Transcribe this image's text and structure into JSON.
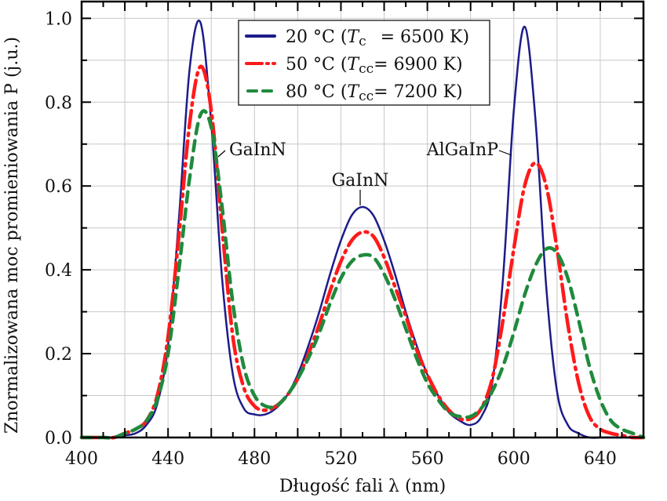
{
  "chart_data": {
    "type": "line",
    "title": "",
    "xlabel": "Długość fali λ (nm)",
    "ylabel": "Znormalizowana moc promieniowania P (j.u.)",
    "xlim": [
      400,
      660
    ],
    "ylim": [
      0,
      1.04
    ],
    "grid": true,
    "xticks": [
      400,
      440,
      480,
      520,
      560,
      600,
      640
    ],
    "xtick_labels": [
      "400",
      "440",
      "480",
      "520",
      "560",
      "600",
      "640"
    ],
    "yticks": [
      0,
      0.2,
      0.4,
      0.6,
      0.8,
      1.0
    ],
    "ytick_labels": [
      "0.0",
      "0.2",
      "0.4",
      "0.6",
      "0.8",
      "1.0"
    ],
    "legend_placement": "top-center",
    "x": [
      400,
      405,
      410,
      415,
      420,
      425,
      430,
      435,
      440,
      445,
      450,
      455,
      460,
      465,
      470,
      475,
      480,
      485,
      490,
      495,
      500,
      505,
      510,
      515,
      520,
      525,
      530,
      535,
      540,
      545,
      550,
      555,
      560,
      565,
      570,
      575,
      580,
      585,
      590,
      595,
      600,
      605,
      610,
      615,
      620,
      625,
      630,
      635,
      640,
      645,
      650,
      655,
      660
    ],
    "series": [
      {
        "name": "20 °C (Tc = 6500 K)",
        "legend_parts": [
          "20 °C (",
          "T",
          "c",
          "= 6500 K)"
        ],
        "color": "#1c1c8a",
        "style": "solid",
        "values": [
          0,
          0,
          0,
          0,
          0.005,
          0.01,
          0.03,
          0.08,
          0.22,
          0.52,
          0.88,
          0.99,
          0.75,
          0.38,
          0.15,
          0.07,
          0.055,
          0.055,
          0.07,
          0.1,
          0.15,
          0.22,
          0.3,
          0.39,
          0.47,
          0.53,
          0.55,
          0.53,
          0.47,
          0.39,
          0.3,
          0.22,
          0.15,
          0.1,
          0.06,
          0.04,
          0.03,
          0.05,
          0.13,
          0.38,
          0.78,
          0.98,
          0.76,
          0.36,
          0.11,
          0.03,
          0.01,
          0,
          0,
          0,
          0,
          0,
          0
        ]
      },
      {
        "name": "50 °C (Tcc = 6900 K)",
        "legend_parts": [
          "50 °C (",
          "T",
          "cc",
          "= 6900 K)"
        ],
        "color": "#ff1a1a",
        "style": "dash-dot",
        "values": [
          0,
          0,
          0,
          0,
          0.01,
          0.02,
          0.04,
          0.1,
          0.24,
          0.48,
          0.75,
          0.885,
          0.78,
          0.5,
          0.24,
          0.12,
          0.075,
          0.065,
          0.075,
          0.1,
          0.14,
          0.2,
          0.27,
          0.35,
          0.42,
          0.47,
          0.49,
          0.48,
          0.43,
          0.36,
          0.29,
          0.21,
          0.15,
          0.1,
          0.065,
          0.045,
          0.045,
          0.07,
          0.14,
          0.28,
          0.45,
          0.6,
          0.655,
          0.6,
          0.45,
          0.27,
          0.13,
          0.05,
          0.02,
          0.01,
          0.005,
          0,
          0
        ]
      },
      {
        "name": "80 °C (Tcc = 7200 K)",
        "legend_parts": [
          "80 °C (",
          "T",
          "cc",
          "= 7200 K)"
        ],
        "color": "#1f8a3c",
        "style": "dashed",
        "values": [
          0,
          0,
          0,
          0,
          0.01,
          0.02,
          0.04,
          0.09,
          0.2,
          0.4,
          0.62,
          0.77,
          0.74,
          0.55,
          0.32,
          0.17,
          0.1,
          0.075,
          0.075,
          0.1,
          0.14,
          0.19,
          0.25,
          0.32,
          0.38,
          0.42,
          0.435,
          0.43,
          0.39,
          0.33,
          0.26,
          0.19,
          0.13,
          0.09,
          0.06,
          0.05,
          0.05,
          0.07,
          0.11,
          0.17,
          0.25,
          0.34,
          0.41,
          0.45,
          0.44,
          0.38,
          0.28,
          0.17,
          0.09,
          0.04,
          0.02,
          0.01,
          0
        ]
      }
    ],
    "annotations": [
      {
        "text": "GaInN",
        "x": 458,
        "y": 0.66
      },
      {
        "text": "GaInN",
        "x": 530,
        "y": 0.59
      },
      {
        "text": "AlGaInP",
        "x": 604,
        "y": 0.66
      }
    ]
  }
}
